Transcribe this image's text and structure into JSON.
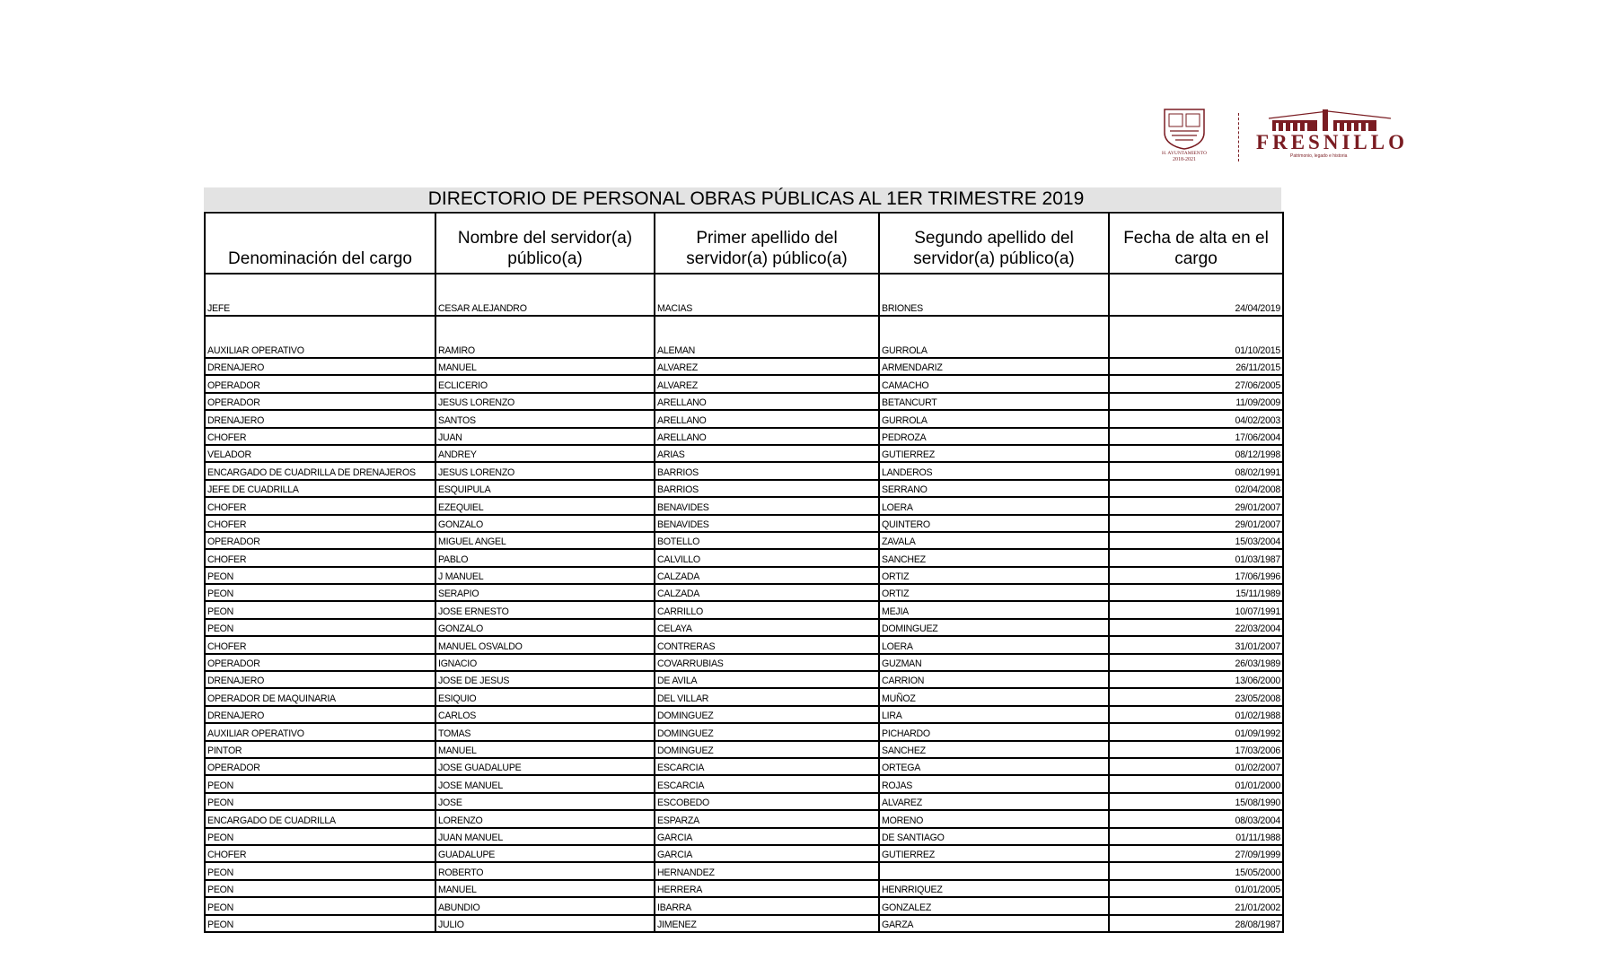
{
  "logos": {
    "municipality_emblem_text": "H. AYUNTAMIENTO 2018-2021",
    "brand": "FRESNILLO",
    "brand_tagline": "Patrimonio, legado e historia",
    "brand_color": "#7a1c22"
  },
  "title": "DIRECTORIO DE PERSONAL  OBRAS PÚBLICAS AL 1ER TRIMESTRE 2019",
  "columns": [
    "Denominación del cargo",
    "Nombre del servidor(a) público(a)",
    "Primer apellido del servidor(a) público(a)",
    "Segundo apellido del servidor(a) público(a)",
    "Fecha de alta en el cargo"
  ],
  "rows": [
    [
      "JEFE",
      "CESAR ALEJANDRO",
      "MACIAS",
      "BRIONES",
      "24/04/2019"
    ],
    [
      "AUXILIAR OPERATIVO",
      "RAMIRO",
      "ALEMAN",
      "GURROLA",
      "01/10/2015"
    ],
    [
      "DRENAJERO",
      "MANUEL",
      "ALVAREZ",
      "ARMENDARIZ",
      "26/11/2015"
    ],
    [
      "OPERADOR",
      "ECLICERIO",
      "ALVAREZ",
      "CAMACHO",
      "27/06/2005"
    ],
    [
      "OPERADOR",
      "JESUS LORENZO",
      "ARELLANO",
      "BETANCURT",
      "11/09/2009"
    ],
    [
      "DRENAJERO",
      "SANTOS",
      "ARELLANO",
      "GURROLA",
      "04/02/2003"
    ],
    [
      "CHOFER",
      "JUAN",
      "ARELLANO",
      "PEDROZA",
      "17/06/2004"
    ],
    [
      "VELADOR",
      "ANDREY",
      "ARIAS",
      "GUTIERREZ",
      "08/12/1998"
    ],
    [
      "ENCARGADO DE CUADRILLA DE DRENAJEROS",
      "JESUS LORENZO",
      "BARRIOS",
      "LANDEROS",
      "08/02/1991"
    ],
    [
      "JEFE DE CUADRILLA",
      "ESQUIPULA",
      "BARRIOS",
      "SERRANO",
      "02/04/2008"
    ],
    [
      "CHOFER",
      "EZEQUIEL",
      "BENAVIDES",
      "LOERA",
      "29/01/2007"
    ],
    [
      "CHOFER",
      "GONZALO",
      "BENAVIDES",
      "QUINTERO",
      "29/01/2007"
    ],
    [
      "OPERADOR",
      "MIGUEL ANGEL",
      "BOTELLO",
      "ZAVALA",
      "15/03/2004"
    ],
    [
      "CHOFER",
      "PABLO",
      "CALVILLO",
      "SANCHEZ",
      "01/03/1987"
    ],
    [
      "PEON",
      "J MANUEL",
      "CALZADA",
      "ORTIZ",
      "17/06/1996"
    ],
    [
      "PEON",
      "SERAPIO",
      "CALZADA",
      "ORTIZ",
      "15/11/1989"
    ],
    [
      "PEON",
      "JOSE ERNESTO",
      "CARRILLO",
      "MEJIA",
      "10/07/1991"
    ],
    [
      "PEON",
      "GONZALO",
      "CELAYA",
      "DOMINGUEZ",
      "22/03/2004"
    ],
    [
      "CHOFER",
      "MANUEL OSVALDO",
      "CONTRERAS",
      "LOERA",
      "31/01/2007"
    ],
    [
      "OPERADOR",
      "IGNACIO",
      "COVARRUBIAS",
      "GUZMAN",
      "26/03/1989"
    ],
    [
      "DRENAJERO",
      "JOSE DE JESUS",
      "DE AVILA",
      "CARRION",
      "13/06/2000"
    ],
    [
      "OPERADOR DE MAQUINARIA",
      "ESIQUIO",
      "DEL VILLAR",
      "MUÑOZ",
      "23/05/2008"
    ],
    [
      "DRENAJERO",
      "CARLOS",
      "DOMINGUEZ",
      "LIRA",
      "01/02/1988"
    ],
    [
      "AUXILIAR OPERATIVO",
      "TOMAS",
      "DOMINGUEZ",
      "PICHARDO",
      "01/09/1992"
    ],
    [
      "PINTOR",
      "MANUEL",
      "DOMINGUEZ",
      "SANCHEZ",
      "17/03/2006"
    ],
    [
      "OPERADOR",
      "JOSE GUADALUPE",
      "ESCARCIA",
      "ORTEGA",
      "01/02/2007"
    ],
    [
      "PEON",
      "JOSE MANUEL",
      "ESCARCIA",
      "ROJAS",
      "01/01/2000"
    ],
    [
      "PEON",
      "JOSE",
      "ESCOBEDO",
      "ALVAREZ",
      "15/08/1990"
    ],
    [
      "ENCARGADO DE CUADRILLA",
      "LORENZO",
      "ESPARZA",
      "MORENO",
      "08/03/2004"
    ],
    [
      "PEON",
      "JUAN MANUEL",
      "GARCIA",
      "DE SANTIAGO",
      "01/11/1988"
    ],
    [
      "CHOFER",
      "GUADALUPE",
      "GARCIA",
      "GUTIERREZ",
      "27/09/1999"
    ],
    [
      "PEON",
      "ROBERTO",
      "HERNANDEZ",
      "",
      "15/05/2000"
    ],
    [
      "PEON",
      "MANUEL",
      "HERRERA",
      "HENRRIQUEZ",
      "01/01/2005"
    ],
    [
      "PEON",
      "ABUNDIO",
      "IBARRA",
      "GONZALEZ",
      "21/01/2002"
    ],
    [
      "PEON",
      "JULIO",
      "JIMENEZ",
      "GARZA",
      "28/08/1987"
    ]
  ]
}
